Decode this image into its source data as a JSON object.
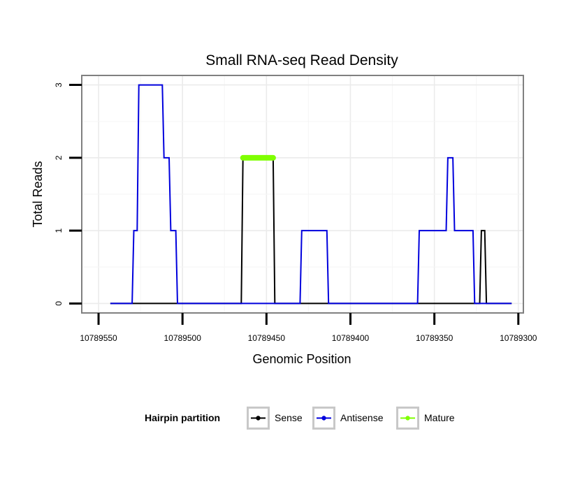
{
  "chart_data": {
    "type": "line",
    "title": "Small RNA-seq Read Density",
    "xlabel": "Genomic Position",
    "ylabel": "Total Reads",
    "xlim": [
      10789560,
      10789297
    ],
    "ylim": [
      -0.13,
      3.13
    ],
    "x_reversed": true,
    "grid": true,
    "x_ticks": [
      10789550,
      10789500,
      10789450,
      10789400,
      10789350,
      10789300
    ],
    "x_tick_labels": [
      "10789550",
      "10789500",
      "10789450",
      "10789400",
      "10789350",
      "10789300"
    ],
    "y_ticks": [
      0,
      1,
      2,
      3
    ],
    "y_tick_labels": [
      "0",
      "1",
      "2",
      "3"
    ],
    "legend": {
      "title": "Hairpin partition",
      "position": "bottom",
      "entries": [
        {
          "key": "sense",
          "label": "Sense",
          "color": "#000000"
        },
        {
          "key": "antisense",
          "label": "Antisense",
          "color": "#0000dd"
        },
        {
          "key": "mature",
          "label": "Mature",
          "color": "#7fff00"
        }
      ]
    },
    "series": [
      {
        "name": "Sense",
        "color": "#000000",
        "x": [
          10789543,
          10789465,
          10789464,
          10789446,
          10789445,
          10789370,
          10789369,
          10789360,
          10789359,
          10789349,
          10789348,
          10789323,
          10789322,
          10789320,
          10789319,
          10789304
        ],
        "values": [
          0,
          0,
          2,
          2,
          0,
          0,
          0,
          0,
          0,
          0,
          0,
          0,
          1,
          1,
          0,
          0
        ]
      },
      {
        "name": "Antisense",
        "color": "#0000dd",
        "x": [
          10789543,
          10789530,
          10789529,
          10789527,
          10789526,
          10789512,
          10789511,
          10789508,
          10789507,
          10789504,
          10789503,
          10789500,
          10789499,
          10789465,
          10789445,
          10789430,
          10789429,
          10789414,
          10789413,
          10789360,
          10789359,
          10789343,
          10789342,
          10789339,
          10789338,
          10789332,
          10789331,
          10789327,
          10789326,
          10789316,
          10789315,
          10789304
        ],
        "values": [
          0,
          0,
          1,
          1,
          3,
          3,
          2,
          2,
          1,
          1,
          0,
          0,
          0,
          0,
          0,
          0,
          1,
          1,
          0,
          0,
          1,
          1,
          2,
          2,
          1,
          1,
          1,
          1,
          0,
          0,
          0,
          0
        ]
      },
      {
        "name": "Mature",
        "color": "#7fff00",
        "x": [
          10789464,
          10789446
        ],
        "values": [
          2,
          2
        ]
      }
    ]
  }
}
